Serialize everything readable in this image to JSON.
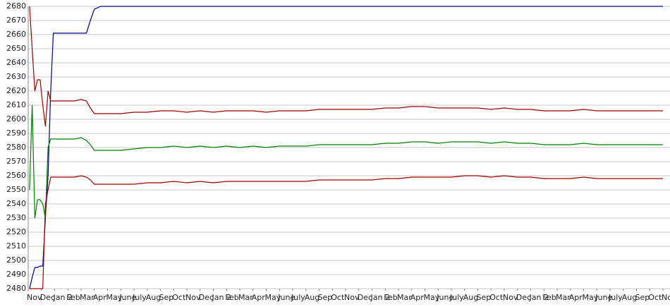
{
  "chart_data": {
    "type": "line",
    "x": [
      0.1,
      0.3,
      0.5,
      0.7,
      0.9,
      1.1,
      1.3,
      1.5,
      1.7,
      1.9,
      2.2,
      2.6,
      3.0,
      3.5,
      4.0,
      4.4,
      4.7,
      5.0,
      5.5,
      6,
      7,
      8,
      9,
      10,
      11,
      12,
      13,
      14,
      15,
      16,
      17,
      18,
      19,
      20,
      21,
      22,
      23,
      24,
      25,
      26,
      27,
      28,
      29,
      30,
      31,
      32,
      33,
      34,
      35,
      36,
      37,
      38,
      39,
      40,
      41,
      42,
      43,
      44,
      45,
      46,
      47,
      48
    ],
    "xlim": [
      0,
      48
    ],
    "xticks": [
      {
        "value": 0,
        "label": "Nov"
      },
      {
        "value": 1,
        "label": "Dec"
      },
      {
        "value": 2,
        "label": "Jan 2"
      },
      {
        "value": 3,
        "label": "Feb"
      },
      {
        "value": 4,
        "label": "Mar"
      },
      {
        "value": 5,
        "label": "Apr"
      },
      {
        "value": 6,
        "label": "May"
      },
      {
        "value": 7,
        "label": "June"
      },
      {
        "value": 8,
        "label": "July"
      },
      {
        "value": 9,
        "label": "Aug"
      },
      {
        "value": 10,
        "label": "Sep"
      },
      {
        "value": 11,
        "label": "Oct"
      },
      {
        "value": 12,
        "label": "Nov"
      },
      {
        "value": 13,
        "label": "Dec"
      },
      {
        "value": 14,
        "label": "Jan 2"
      },
      {
        "value": 15,
        "label": "Feb"
      },
      {
        "value": 16,
        "label": "Mar"
      },
      {
        "value": 17,
        "label": "Apr"
      },
      {
        "value": 18,
        "label": "May"
      },
      {
        "value": 19,
        "label": "June"
      },
      {
        "value": 20,
        "label": "July"
      },
      {
        "value": 21,
        "label": "Aug"
      },
      {
        "value": 22,
        "label": "Sep"
      },
      {
        "value": 23,
        "label": "Oct"
      },
      {
        "value": 24,
        "label": "Nov"
      },
      {
        "value": 25,
        "label": "Dec"
      },
      {
        "value": 26,
        "label": "Jan 2"
      },
      {
        "value": 27,
        "label": "Feb"
      },
      {
        "value": 28,
        "label": "Mar"
      },
      {
        "value": 29,
        "label": "Apr"
      },
      {
        "value": 30,
        "label": "May"
      },
      {
        "value": 31,
        "label": "June"
      },
      {
        "value": 32,
        "label": "July"
      },
      {
        "value": 33,
        "label": "Aug"
      },
      {
        "value": 34,
        "label": "Sep"
      },
      {
        "value": 35,
        "label": "Oct"
      },
      {
        "value": 36,
        "label": "Nov"
      },
      {
        "value": 37,
        "label": "Dec"
      },
      {
        "value": 38,
        "label": "Jan 2"
      },
      {
        "value": 39,
        "label": "Feb"
      },
      {
        "value": 40,
        "label": "Mar"
      },
      {
        "value": 41,
        "label": "Apr"
      },
      {
        "value": 42,
        "label": "May"
      },
      {
        "value": 43,
        "label": "June"
      },
      {
        "value": 44,
        "label": "July"
      },
      {
        "value": 45,
        "label": "Aug"
      },
      {
        "value": 46,
        "label": "Sep"
      },
      {
        "value": 47,
        "label": "Oct"
      },
      {
        "value": 48,
        "label": "Nov"
      }
    ],
    "ylim": [
      2480,
      2680
    ],
    "yticks": [
      2480,
      2490,
      2500,
      2510,
      2520,
      2530,
      2540,
      2550,
      2560,
      2570,
      2580,
      2590,
      2600,
      2610,
      2620,
      2630,
      2640,
      2650,
      2660,
      2670,
      2680
    ],
    "grid": true,
    "series": [
      {
        "color": "#00008b",
        "values": [
          2480,
          2488,
          2495,
          2495,
          2496,
          2496,
          2530,
          2560,
          2620,
          2661,
          2661,
          2661,
          2661,
          2661,
          2661,
          2661,
          2670,
          2678,
          2680,
          2680,
          2680,
          2680,
          2680,
          2680,
          2680,
          2680,
          2680,
          2680,
          2680,
          2680,
          2680,
          2680,
          2680,
          2680,
          2680,
          2680,
          2680,
          2680,
          2680,
          2680,
          2680,
          2680,
          2680,
          2680,
          2680,
          2680,
          2680,
          2680,
          2680,
          2680,
          2680,
          2680,
          2680,
          2680,
          2680,
          2680,
          2680,
          2680,
          2680,
          2680,
          2680,
          2680
        ]
      },
      {
        "color": "#a00000",
        "values": [
          2680,
          2650,
          2620,
          2628,
          2628,
          2610,
          2595,
          2620,
          2613,
          2613,
          2613,
          2613,
          2613,
          2613,
          2614,
          2613,
          2608,
          2604,
          2604,
          2604,
          2604,
          2605,
          2605,
          2606,
          2606,
          2605,
          2606,
          2605,
          2606,
          2606,
          2606,
          2605,
          2606,
          2606,
          2606,
          2607,
          2607,
          2607,
          2607,
          2607,
          2608,
          2608,
          2609,
          2609,
          2608,
          2608,
          2608,
          2608,
          2607,
          2608,
          2607,
          2607,
          2606,
          2606,
          2606,
          2607,
          2606,
          2606,
          2606,
          2606,
          2606,
          2606
        ]
      },
      {
        "color": "#008000",
        "values": [
          2550,
          2610,
          2530,
          2543,
          2543,
          2540,
          2530,
          2580,
          2586,
          2586,
          2586,
          2586,
          2586,
          2586,
          2587,
          2585,
          2582,
          2578,
          2578,
          2578,
          2578,
          2579,
          2580,
          2580,
          2581,
          2580,
          2581,
          2580,
          2581,
          2580,
          2581,
          2580,
          2581,
          2581,
          2581,
          2582,
          2582,
          2582,
          2582,
          2582,
          2583,
          2583,
          2584,
          2584,
          2583,
          2584,
          2584,
          2584,
          2583,
          2584,
          2583,
          2583,
          2582,
          2582,
          2582,
          2583,
          2582,
          2582,
          2582,
          2582,
          2582,
          2582
        ]
      },
      {
        "color": "#a00000",
        "values": [
          2480,
          2480,
          2480,
          2480,
          2480,
          2480,
          2540,
          2550,
          2559,
          2559,
          2559,
          2559,
          2559,
          2559,
          2560,
          2559,
          2557,
          2554,
          2554,
          2554,
          2554,
          2554,
          2555,
          2555,
          2556,
          2555,
          2556,
          2555,
          2556,
          2556,
          2556,
          2556,
          2556,
          2556,
          2556,
          2557,
          2557,
          2557,
          2557,
          2557,
          2558,
          2558,
          2559,
          2559,
          2559,
          2559,
          2560,
          2560,
          2559,
          2560,
          2559,
          2559,
          2558,
          2558,
          2558,
          2559,
          2558,
          2558,
          2558,
          2558,
          2558,
          2558
        ]
      }
    ]
  }
}
